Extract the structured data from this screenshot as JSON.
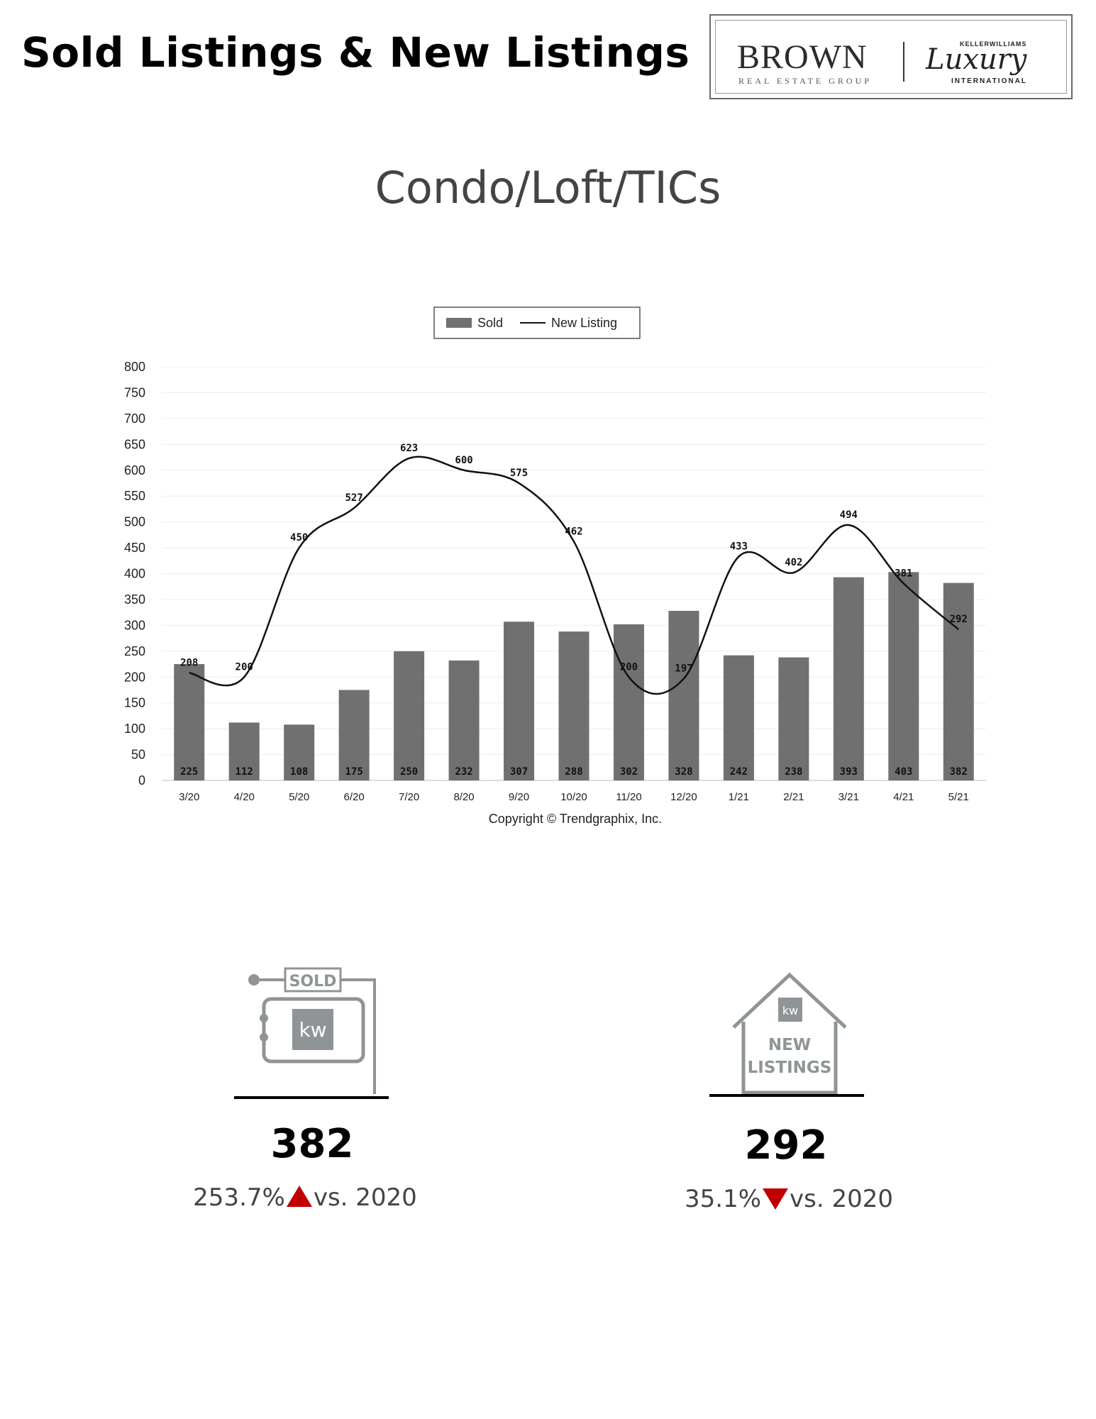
{
  "page": {
    "title": "Sold Listings & New Listings"
  },
  "logo": {
    "brand": "BROWN",
    "brand_sub": "REAL ESTATE GROUP",
    "kw_top": "KELLERWILLIAMS",
    "luxury": "Luxury",
    "intl": "INTERNATIONAL"
  },
  "chart_heading": "Condo/Loft/TICs",
  "chart_data": {
    "type": "bar",
    "categories": [
      "3/20",
      "4/20",
      "5/20",
      "6/20",
      "7/20",
      "8/20",
      "9/20",
      "10/20",
      "11/20",
      "12/20",
      "1/21",
      "2/21",
      "3/21",
      "4/21",
      "5/21"
    ],
    "series": [
      {
        "name": "Sold",
        "type": "bar",
        "values": [
          225,
          112,
          108,
          175,
          250,
          232,
          307,
          288,
          302,
          328,
          242,
          238,
          393,
          403,
          382
        ],
        "color": "#707070"
      },
      {
        "name": "New Listing",
        "type": "line",
        "values": [
          208,
          200,
          450,
          527,
          623,
          600,
          575,
          462,
          200,
          197,
          433,
          402,
          494,
          381,
          292
        ],
        "color": "#111111"
      }
    ],
    "ylim": [
      0,
      800
    ],
    "yticks": [
      0,
      50,
      100,
      150,
      200,
      250,
      300,
      350,
      400,
      450,
      500,
      550,
      600,
      650,
      700,
      750,
      800
    ],
    "grid": true,
    "legend_position": "top-center",
    "copyright": "Copyright © Trendgraphix, Inc."
  },
  "stats": {
    "sold": {
      "icon_label": "SOLD",
      "kw": "kw",
      "value": "382",
      "change": "253.7%",
      "direction": "up",
      "suffix": "vs. 2020"
    },
    "new": {
      "icon_label_1": "NEW",
      "icon_label_2": "LISTINGS",
      "kw": "kw",
      "value": "292",
      "change": "35.1%",
      "direction": "down",
      "suffix": "vs. 2020"
    }
  },
  "colors": {
    "accent_red": "#c00000",
    "icon_gray": "#8f9496",
    "bar_gray": "#707070"
  }
}
